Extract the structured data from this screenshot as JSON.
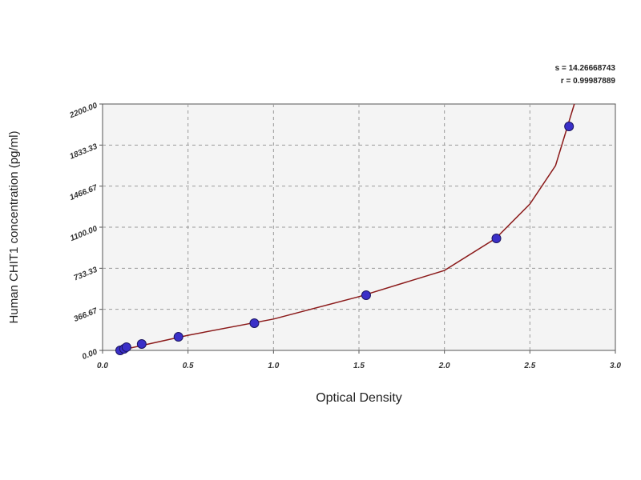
{
  "chart_data": {
    "type": "scatter",
    "x_label": "Optical Density",
    "y_label": "Human CHIT1 concentration (pg/ml)",
    "annotations": [
      "s = 14.26668743",
      "r = 0.99987889"
    ],
    "xlim": [
      0,
      3
    ],
    "ylim": [
      0,
      2200
    ],
    "xticks": [
      {
        "value": 0,
        "label": "0.0"
      },
      0.5,
      {
        "value": 1,
        "label": "1.0"
      },
      1.5,
      {
        "value": 2,
        "label": "2.0"
      },
      2.5,
      {
        "value": 3,
        "label": "3.0"
      }
    ],
    "yticks": [
      {
        "value": 0,
        "label": "0.00"
      },
      {
        "value": 366.67,
        "label": "366.67"
      },
      {
        "value": 733.33,
        "label": "733.33"
      },
      {
        "value": 1100,
        "label": "1100.00"
      },
      {
        "value": 1466.67,
        "label": "1466.67"
      },
      {
        "value": 1833.33,
        "label": "1833.33"
      },
      {
        "value": 2200,
        "label": "2200.00"
      }
    ],
    "grid": true,
    "series": [
      {
        "mode": "markers",
        "color": "#3a2fc8",
        "x": [
          0.103,
          0.126,
          0.14,
          0.229,
          0.444,
          0.888,
          1.542,
          2.304,
          2.729
        ],
        "values": [
          0,
          14,
          29,
          57,
          121,
          243,
          493,
          1000,
          2000
        ]
      },
      {
        "mode": "line",
        "color": "#8b1a1a",
        "x": [
          0.1,
          0.5,
          1.0,
          1.5,
          2.0,
          2.3,
          2.5,
          2.65,
          2.76
        ],
        "values": [
          0,
          135,
          280,
          480,
          714,
          1000,
          1307,
          1650,
          2200
        ]
      }
    ]
  }
}
